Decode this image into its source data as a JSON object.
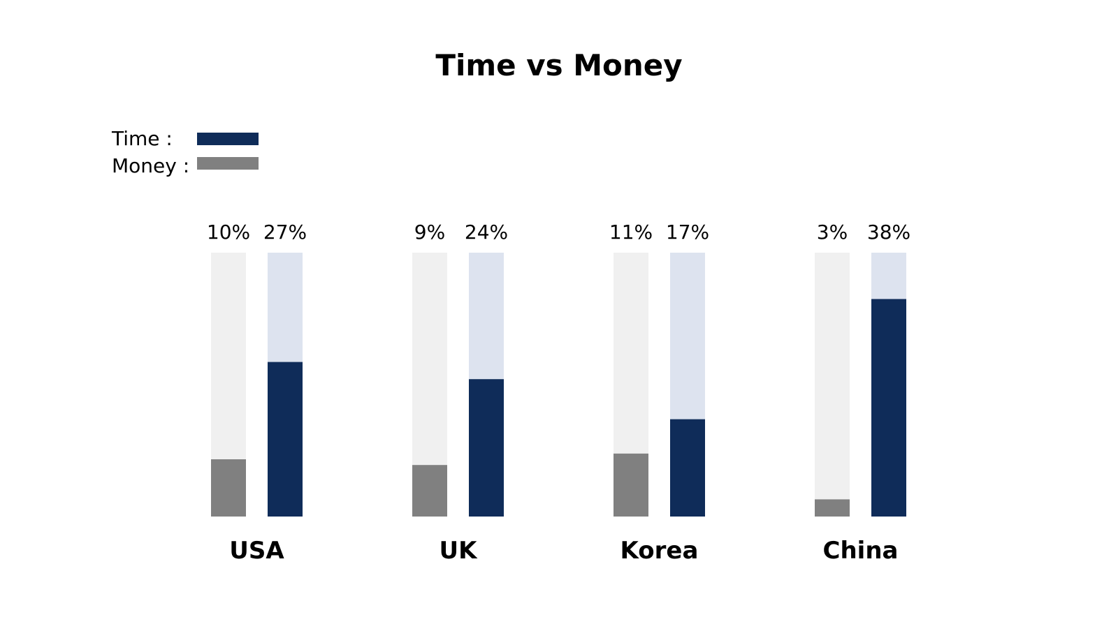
{
  "chart_data": {
    "type": "bar",
    "title": "Time vs Money",
    "categories": [
      "USA",
      "UK",
      "Korea",
      "China"
    ],
    "series": [
      {
        "name": "Money",
        "values": [
          10,
          9,
          11,
          3
        ]
      },
      {
        "name": "Time",
        "values": [
          27,
          24,
          17,
          38
        ]
      }
    ],
    "data_labels": [
      [
        "10%",
        "27%"
      ],
      [
        "9%",
        "24%"
      ],
      [
        "11%",
        "17%"
      ],
      [
        "3%",
        "38%"
      ]
    ],
    "legend": {
      "placement": "top-left",
      "entries": [
        {
          "label": "Time :",
          "series": "Time"
        },
        {
          "label": "Money :",
          "series": "Money"
        }
      ]
    },
    "colors": {
      "money": "#808080",
      "money_track": "#f0f0f0",
      "time": "#0f2c59",
      "time_track": "#dde3ef",
      "text": "#000000"
    },
    "grid": false
  }
}
